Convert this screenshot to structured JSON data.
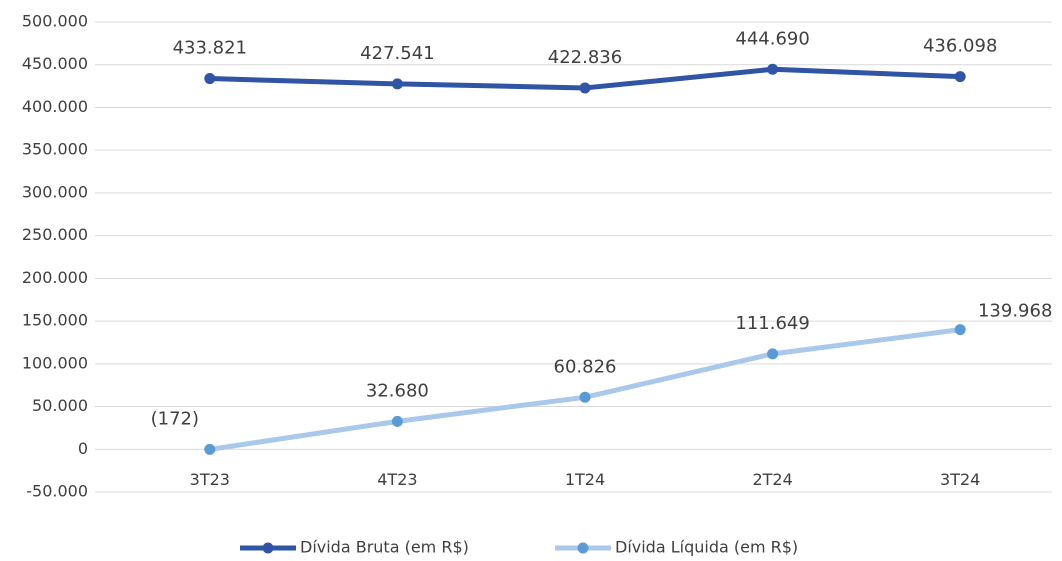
{
  "chart_data": {
    "type": "line",
    "categories": [
      "3T23",
      "4T23",
      "1T24",
      "2T24",
      "3T24"
    ],
    "series": [
      {
        "name": "Dívida Bruta (em R$)",
        "color": "#2f55a4",
        "marker_color": "#2f55a4",
        "values": [
          433821,
          427541,
          422836,
          444690,
          436098
        ],
        "value_labels": [
          "433.821",
          "427.541",
          "422.836",
          "444.690",
          "436.098"
        ]
      },
      {
        "name": "Dívida Líquida (em R$)",
        "color": "#a9c8ea",
        "marker_color": "#5b9bd5",
        "values": [
          -172,
          32680,
          60826,
          111649,
          139968
        ],
        "value_labels": [
          "(172)",
          "32.680",
          "60.826",
          "111.649",
          "139.968"
        ]
      }
    ],
    "ylim": [
      -50000,
      500000
    ],
    "yticks": [
      {
        "value": -50000,
        "label": "-50.000"
      },
      0,
      {
        "value": 50000,
        "label": "50.000"
      },
      {
        "value": 100000,
        "label": "100.000"
      },
      {
        "value": 150000,
        "label": "150.000"
      },
      {
        "value": 200000,
        "label": "200.000"
      },
      {
        "value": 250000,
        "label": "250.000"
      },
      {
        "value": 300000,
        "label": "300.000"
      },
      {
        "value": 350000,
        "label": "350.000"
      },
      {
        "value": 400000,
        "label": "400.000"
      },
      {
        "value": 450000,
        "label": "450.000"
      },
      {
        "value": 500000,
        "label": "500.000"
      }
    ],
    "grid": true,
    "legend": "bottom"
  }
}
